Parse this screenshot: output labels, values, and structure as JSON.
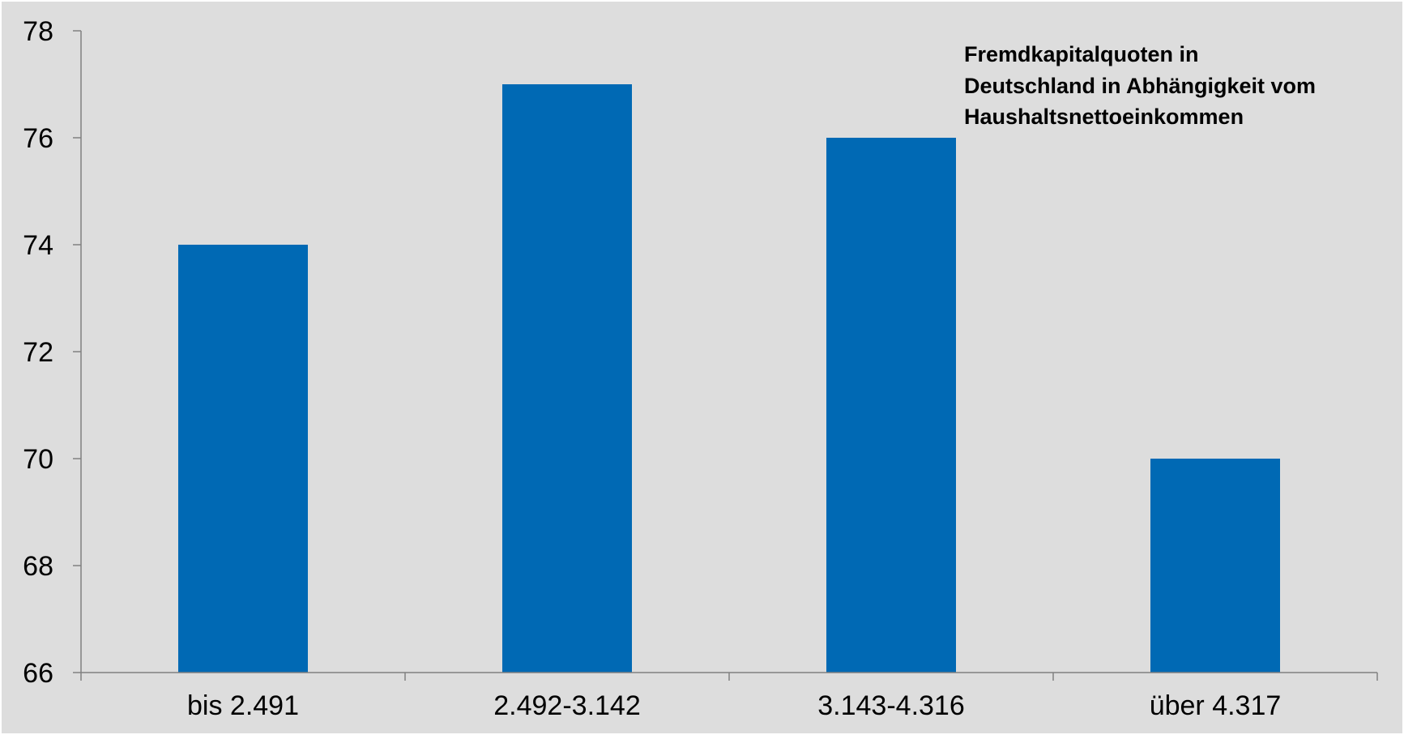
{
  "chart_data": {
    "type": "bar",
    "title_lines": [
      "Fremdkapitalquoten in",
      "Deutschland in Abhängigkeit vom",
      "Haushaltsnettoeinkommen"
    ],
    "categories": [
      "bis 2.491",
      "2.492-3.142",
      "3.143-4.316",
      "über 4.317"
    ],
    "values": [
      74,
      77,
      76,
      70
    ],
    "ylim": [
      66,
      78
    ],
    "yticks": [
      "66",
      "68",
      "70",
      "72",
      "74",
      "76",
      "78"
    ],
    "grid": false,
    "legend": "none",
    "colors": {
      "bar": "#0069B4",
      "plot_background": "#DDDDDD",
      "axis": "#808080"
    }
  }
}
